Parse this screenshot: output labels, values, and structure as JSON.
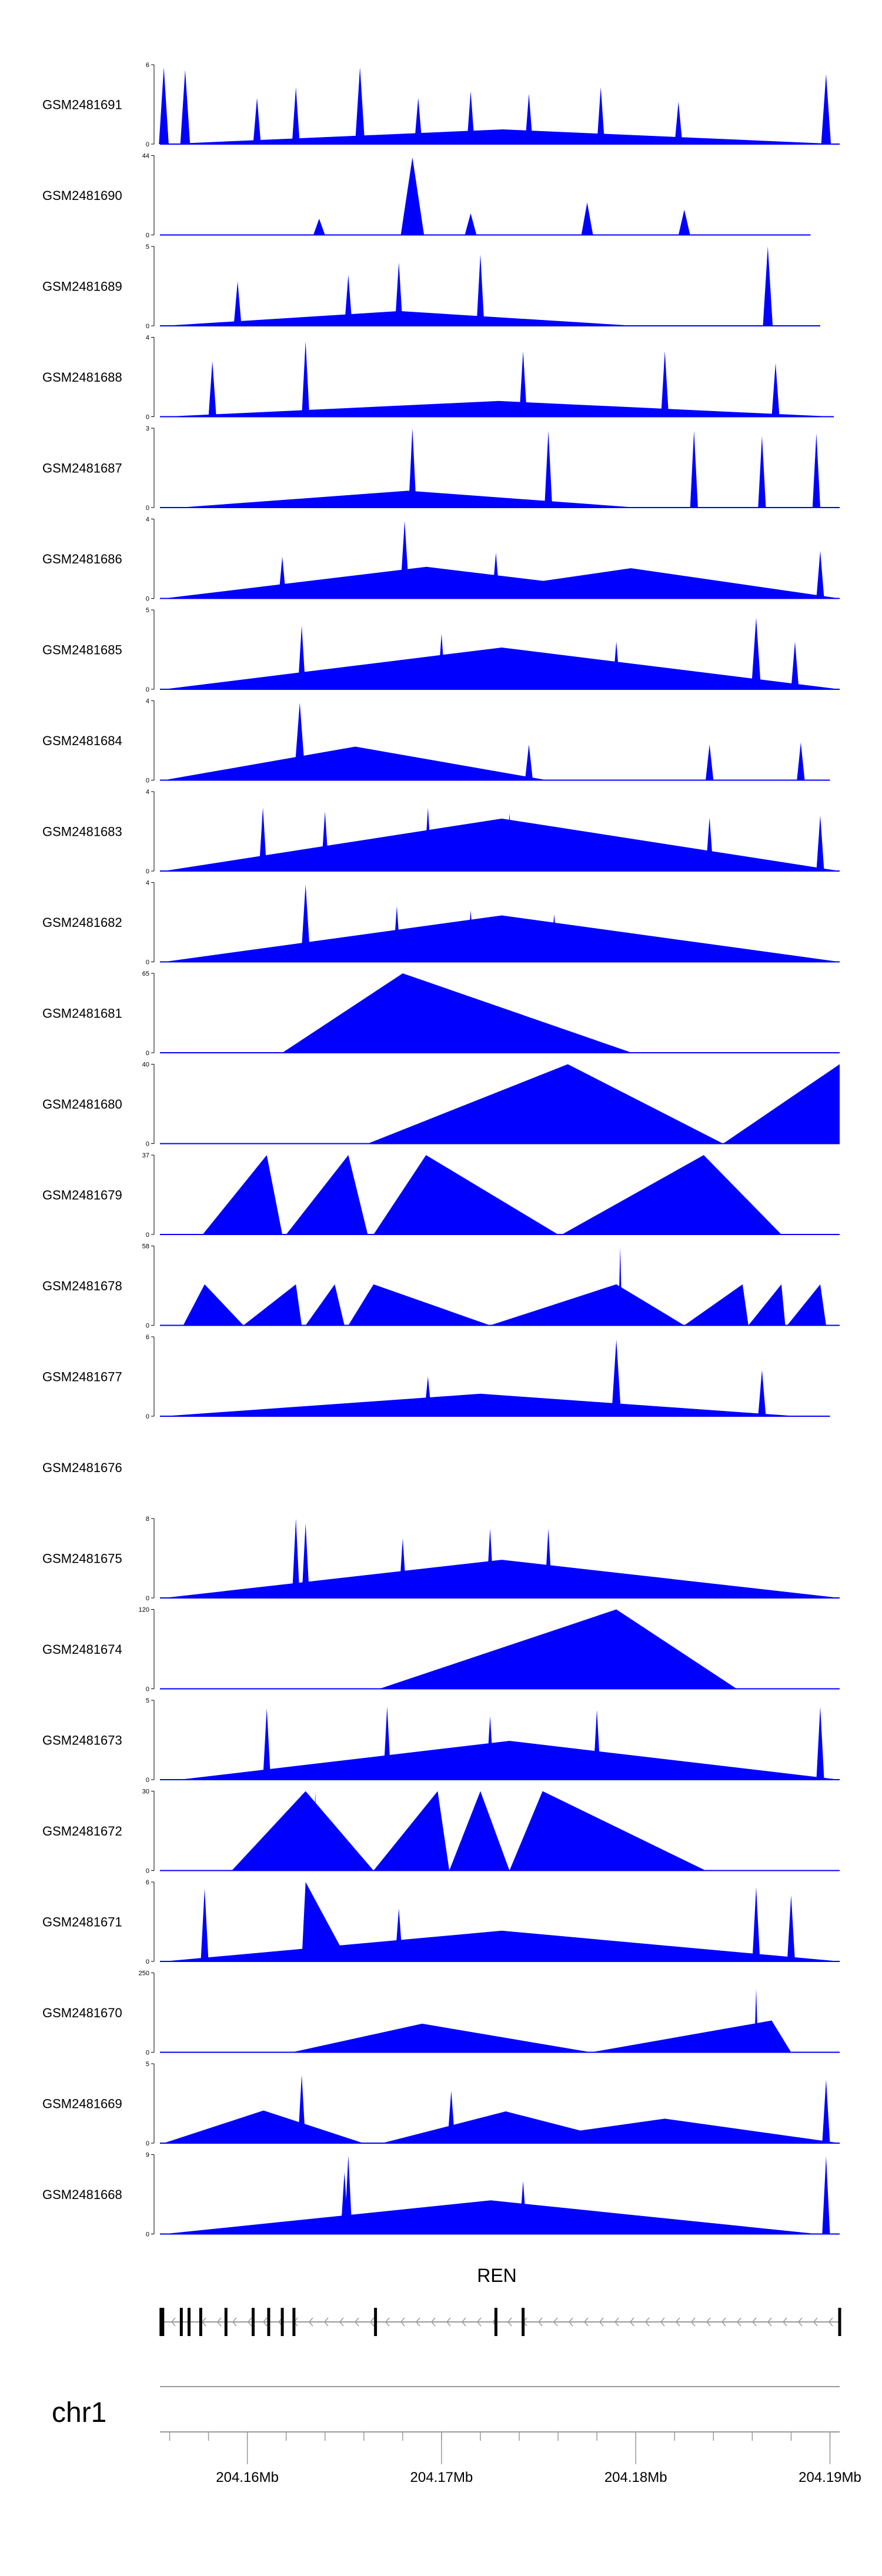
{
  "chart_data": {
    "type": "area",
    "title": "",
    "fill_color": "#0000ff",
    "line_color": "#000000",
    "x_range": [
      204.1555,
      204.1905
    ],
    "tracks": [
      {
        "name": "GSM2481691",
        "ymax": "6",
        "peaks": [
          [
            204.1557,
            5.8,
            0.00025
          ],
          [
            204.1568,
            5.6,
            0.00025
          ],
          [
            204.1605,
            3.5,
            0.0002
          ],
          [
            204.1625,
            4.3,
            0.0002
          ],
          [
            204.1658,
            5.8,
            0.00025
          ],
          [
            204.1688,
            3.5,
            0.0002
          ],
          [
            204.1715,
            4.0,
            0.0002
          ],
          [
            204.1745,
            3.8,
            0.0002
          ],
          [
            204.1782,
            4.3,
            0.0002
          ],
          [
            204.1822,
            3.2,
            0.0002
          ],
          [
            204.1898,
            5.3,
            0.00025
          ]
        ],
        "bg": [
          [
            204.1558,
            0.03,
            2.8,
            41
          ],
          [
            204.1825,
            0.045,
            2.0,
            42
          ]
        ],
        "floor_end": 204.1905
      },
      {
        "name": "GSM2481690",
        "ymax": "44",
        "peaks": [
          [
            204.1637,
            9,
            0.0003
          ],
          [
            204.1685,
            43,
            0.0006
          ],
          [
            204.1715,
            12,
            0.0003
          ],
          [
            204.1775,
            18,
            0.0003
          ],
          [
            204.1825,
            14,
            0.0003
          ]
        ],
        "bg": [
          [
            204.156,
            0.12,
            14,
            43
          ],
          [
            204.1755,
            0.1,
            9,
            44
          ]
        ],
        "floor_end": 204.189
      },
      {
        "name": "GSM2481689",
        "ymax": "5",
        "peaks": [
          [
            204.1595,
            2.8,
            0.0002
          ],
          [
            204.1652,
            3.2,
            0.0002
          ],
          [
            204.1678,
            4.0,
            0.0002
          ],
          [
            204.172,
            4.5,
            0.0002
          ],
          [
            204.1868,
            5.0,
            0.00025
          ]
        ],
        "bg": [
          [
            204.1557,
            0.03,
            2.6,
            51
          ],
          [
            204.1655,
            0.06,
            2.9,
            52
          ],
          [
            204.1815,
            0.05,
            3.0,
            53
          ]
        ],
        "floor_end": 204.1895
      },
      {
        "name": "GSM2481688",
        "ymax": "4",
        "peaks": [
          [
            204.1582,
            2.8,
            0.0002
          ],
          [
            204.163,
            3.8,
            0.0002
          ],
          [
            204.1742,
            3.3,
            0.0002
          ],
          [
            204.1815,
            3.3,
            0.0002
          ],
          [
            204.1872,
            2.7,
            0.0002
          ]
        ],
        "bg": [
          [
            204.1557,
            0.035,
            2.5,
            61
          ],
          [
            204.1668,
            0.06,
            2.6,
            62
          ],
          [
            204.1802,
            0.05,
            2.8,
            63
          ]
        ],
        "floor_end": 204.1902
      },
      {
        "name": "GSM2481687",
        "ymax": "3",
        "peaks": [
          [
            204.1685,
            3.0,
            0.0002
          ],
          [
            204.1755,
            2.9,
            0.0002
          ],
          [
            204.183,
            2.9,
            0.0002
          ],
          [
            204.1865,
            2.7,
            0.0002
          ],
          [
            204.1893,
            2.8,
            0.0002
          ]
        ],
        "bg": [
          [
            204.1565,
            0.05,
            2.3,
            71
          ],
          [
            204.176,
            0.06,
            2.3,
            72
          ]
        ],
        "floor_end": 204.1905
      },
      {
        "name": "GSM2481686",
        "ymax": "4",
        "peaks": [
          [
            204.1618,
            2.1,
            0.0002
          ],
          [
            204.1681,
            3.9,
            0.00025
          ],
          [
            204.1728,
            2.3,
            0.0002
          ],
          [
            204.1895,
            2.4,
            0.0002
          ]
        ],
        "bg": [
          [
            204.1557,
            0.03,
            1.4,
            81
          ],
          [
            204.169,
            0.04,
            1.6,
            82
          ]
        ],
        "floor_end": 204.1905
      },
      {
        "name": "GSM2481685",
        "ymax": "5",
        "peaks": [
          [
            204.1628,
            4.0,
            0.0002
          ],
          [
            204.17,
            3.5,
            0.0002
          ],
          [
            204.179,
            3.0,
            0.0002
          ],
          [
            204.1862,
            4.5,
            0.00025
          ],
          [
            204.1882,
            3.0,
            0.0002
          ]
        ],
        "bg": [
          [
            204.1557,
            0.05,
            2.4,
            91
          ],
          [
            204.1718,
            0.05,
            2.4,
            92
          ]
        ],
        "floor_end": 204.1905
      },
      {
        "name": "GSM2481684",
        "ymax": "4",
        "peaks": [
          [
            204.1627,
            3.9,
            0.0003
          ],
          [
            204.1745,
            1.8,
            0.0002
          ],
          [
            204.1838,
            1.8,
            0.0002
          ],
          [
            204.1885,
            1.9,
            0.0002
          ]
        ],
        "bg": [
          [
            204.1557,
            0.035,
            1.6,
            101
          ],
          [
            204.1682,
            0.045,
            1.6,
            102
          ]
        ],
        "floor_end": 204.19
      },
      {
        "name": "GSM2481683",
        "ymax": "4",
        "peaks": [
          [
            204.1608,
            3.2,
            0.0002
          ],
          [
            204.164,
            3.0,
            0.0002
          ],
          [
            204.1693,
            3.2,
            0.0002
          ],
          [
            204.1735,
            2.9,
            0.0002
          ],
          [
            204.1838,
            2.7,
            0.0002
          ],
          [
            204.1895,
            2.8,
            0.0002
          ]
        ],
        "bg": [
          [
            204.1557,
            0.045,
            2.6,
            111
          ],
          [
            204.174,
            0.05,
            2.6,
            112
          ]
        ],
        "floor_end": 204.1905
      },
      {
        "name": "GSM2481682",
        "ymax": "4",
        "peaks": [
          [
            204.163,
            3.9,
            0.00025
          ],
          [
            204.1677,
            2.8,
            0.0002
          ],
          [
            204.1715,
            2.6,
            0.0002
          ],
          [
            204.1758,
            2.4,
            0.0002
          ]
        ],
        "bg": [
          [
            204.1557,
            0.04,
            2.4,
            121
          ],
          [
            204.1735,
            0.05,
            2.4,
            122
          ]
        ],
        "floor_end": 204.1905
      },
      {
        "name": "GSM2481681",
        "ymax": "65",
        "tri": [
          [
            204.1618,
            204.168,
            204.1798,
            65
          ]
        ]
      },
      {
        "name": "GSM2481680",
        "ymax": "40",
        "tri": [
          [
            204.1662,
            204.1765,
            204.1845,
            40
          ],
          [
            204.1845,
            204.1905,
            204.1905,
            40
          ]
        ]
      },
      {
        "name": "GSM2481679",
        "ymax": "37",
        "tri": [
          [
            204.1577,
            204.161,
            204.1618,
            37
          ],
          [
            204.162,
            204.1652,
            204.1662,
            37
          ],
          [
            204.1665,
            204.1692,
            204.176,
            37
          ],
          [
            204.1762,
            204.1835,
            204.1875,
            37
          ]
        ]
      },
      {
        "name": "GSM2481678",
        "ymax": "58",
        "tri": [
          [
            204.1567,
            204.1578,
            204.1598,
            30
          ],
          [
            204.1598,
            204.1625,
            204.1628,
            30
          ],
          [
            204.163,
            204.1645,
            204.165,
            30
          ],
          [
            204.1652,
            204.1665,
            204.1725,
            30
          ],
          [
            204.1725,
            204.179,
            204.1825,
            30
          ],
          [
            204.1825,
            204.1855,
            204.1858,
            30
          ],
          [
            204.1858,
            204.1875,
            204.1877,
            30
          ],
          [
            204.1878,
            204.1895,
            204.1898,
            30
          ]
        ],
        "peaks": [
          [
            204.158,
            25,
            0.0001
          ],
          [
            204.1792,
            57,
            0.0001
          ]
        ]
      },
      {
        "name": "GSM2481677",
        "ymax": "6",
        "peaks": [
          [
            204.179,
            5.8,
            0.00025
          ],
          [
            204.1693,
            3.0,
            0.0002
          ],
          [
            204.1865,
            3.5,
            0.0002
          ]
        ],
        "bg": [
          [
            204.1557,
            0.03,
            1.9,
            141
          ],
          [
            204.17,
            0.045,
            1.9,
            142
          ]
        ],
        "floor_end": 204.19
      },
      {
        "name": "GSM2481676",
        "ymax": "",
        "empty": true
      },
      {
        "name": "GSM2481675",
        "ymax": "8",
        "peaks": [
          [
            204.1625,
            8.0,
            0.0002
          ],
          [
            204.163,
            7.5,
            0.0002
          ],
          [
            204.168,
            6.0,
            0.0002
          ],
          [
            204.1725,
            7.0,
            0.0002
          ],
          [
            204.1755,
            7.0,
            0.0002
          ]
        ],
        "bg": [
          [
            204.1557,
            0.04,
            4.5,
            151
          ],
          [
            204.1752,
            0.055,
            4.5,
            152
          ]
        ],
        "floor_end": 204.1905
      },
      {
        "name": "GSM2481674",
        "ymax": "120",
        "tri": [
          [
            204.1668,
            204.179,
            204.1852,
            120
          ]
        ]
      },
      {
        "name": "GSM2481673",
        "ymax": "5",
        "peaks": [
          [
            204.161,
            4.5,
            0.0002
          ],
          [
            204.1672,
            4.6,
            0.0002
          ],
          [
            204.1725,
            4.0,
            0.0002
          ],
          [
            204.178,
            4.4,
            0.0002
          ],
          [
            204.1895,
            4.6,
            0.0002
          ]
        ],
        "bg": [
          [
            204.1565,
            0.05,
            3.0,
            161
          ],
          [
            204.1742,
            0.05,
            3.0,
            162
          ]
        ],
        "floor_end": 204.1905
      },
      {
        "name": "GSM2481672",
        "ymax": "30",
        "tri": [
          [
            204.1592,
            204.163,
            204.1665,
            30
          ],
          [
            204.1665,
            204.1698,
            204.1704,
            30
          ],
          [
            204.1704,
            204.172,
            204.1735,
            30
          ],
          [
            204.1735,
            204.1752,
            204.1836,
            30
          ]
        ],
        "peaks": [
          [
            204.1628,
            30,
            0.0001
          ],
          [
            204.1635,
            30,
            0.0001
          ]
        ]
      },
      {
        "name": "GSM2481671",
        "ymax": "6",
        "tri": [
          [
            204.1628,
            204.163,
            204.1652,
            6
          ]
        ],
        "peaks": [
          [
            204.1578,
            5.5,
            0.0002
          ],
          [
            204.1678,
            4.0,
            0.0002
          ],
          [
            204.1862,
            5.6,
            0.0002
          ],
          [
            204.188,
            5.0,
            0.0002
          ]
        ],
        "bg": [
          [
            204.1557,
            0.05,
            3.0,
            171
          ],
          [
            204.1655,
            0.055,
            3.0,
            172
          ]
        ],
        "floor_end": 204.1905
      },
      {
        "name": "GSM2481670",
        "ymax": "250",
        "tri": [
          [
            204.1623,
            204.169,
            204.1777,
            90
          ],
          [
            204.1777,
            204.187,
            204.188,
            100
          ]
        ],
        "peaks": [
          [
            204.1862,
            200,
            0.0001
          ]
        ]
      },
      {
        "name": "GSM2481669",
        "ymax": "5",
        "peaks": [
          [
            204.1628,
            4.3,
            0.0002
          ],
          [
            204.1705,
            3.3,
            0.0002
          ],
          [
            204.1898,
            4.0,
            0.0002
          ]
        ],
        "bg": [
          [
            204.1557,
            0.025,
            2.8,
            181
          ],
          [
            204.1725,
            0.035,
            2.8,
            182
          ]
        ],
        "floor_end": 204.1905
      },
      {
        "name": "GSM2481668",
        "ymax": "9",
        "peaks": [
          [
            204.1652,
            8.9,
            0.0002
          ],
          [
            204.165,
            7.0,
            0.0002
          ],
          [
            204.1742,
            6.0,
            0.0002
          ],
          [
            204.1898,
            8.8,
            0.0002
          ]
        ],
        "bg": [
          [
            204.1557,
            0.04,
            5.5,
            191
          ],
          [
            204.174,
            0.055,
            5.0,
            192
          ]
        ],
        "floor_end": 204.1905
      }
    ],
    "gene": {
      "name": "REN",
      "start": 204.1555,
      "end": 204.1905,
      "exons": [
        204.1556,
        204.1566,
        204.157,
        204.1576,
        204.1589,
        204.1603,
        204.1611,
        204.1618,
        204.1624,
        204.1666,
        204.1728,
        204.1742,
        204.1905
      ]
    },
    "chromosome": "chr1",
    "x_ticks": [
      "204.16Mb",
      "204.17Mb",
      "204.18Mb",
      "204.19Mb"
    ],
    "x_tick_values": [
      204.16,
      204.17,
      204.18,
      204.19
    ]
  }
}
